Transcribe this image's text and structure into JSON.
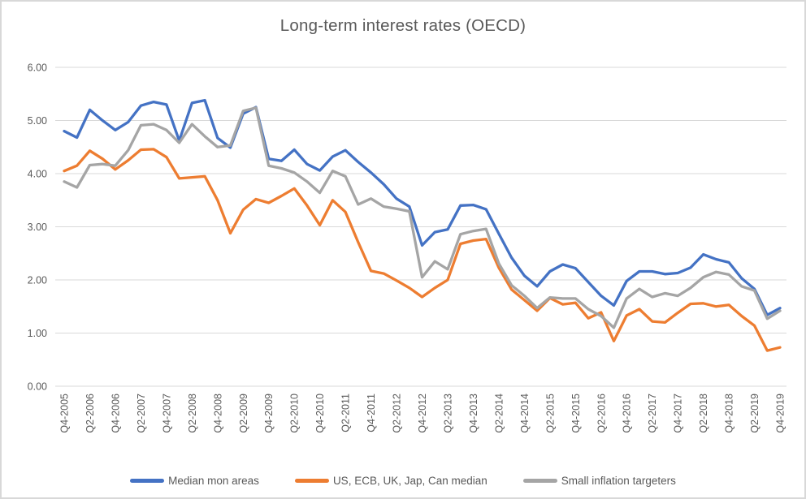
{
  "window": {
    "background": "#FFFFFF",
    "border_color": "#D8D8D8",
    "text_color": "#595959"
  },
  "chart_data": {
    "type": "line",
    "title": "Long-term interest rates (OECD)",
    "grid": true,
    "gridline_color": "#D9D9D9",
    "legend_position": "bottom",
    "ylim": [
      0,
      6
    ],
    "y_ticks": [
      "0.00",
      "1.00",
      "2.00",
      "3.00",
      "4.00",
      "5.00",
      "6.00"
    ],
    "x_label_every": 2,
    "x_label_rotation": -90,
    "categories": [
      "Q4-2005",
      "Q1-2006",
      "Q2-2006",
      "Q3-2006",
      "Q4-2006",
      "Q1-2007",
      "Q2-2007",
      "Q3-2007",
      "Q4-2007",
      "Q1-2008",
      "Q2-2008",
      "Q3-2008",
      "Q4-2008",
      "Q1-2009",
      "Q2-2009",
      "Q3-2009",
      "Q4-2009",
      "Q1-2010",
      "Q2-2010",
      "Q3-2010",
      "Q4-2010",
      "Q1-2011",
      "Q2-2011",
      "Q3-2011",
      "Q4-2011",
      "Q1-2012",
      "Q2-2012",
      "Q3-2012",
      "Q4-2012",
      "Q1-2013",
      "Q2-2013",
      "Q3-2013",
      "Q4-2013",
      "Q1-2014",
      "Q2-2014",
      "Q3-2014",
      "Q4-2014",
      "Q1-2015",
      "Q2-2015",
      "Q3-2015",
      "Q4-2015",
      "Q1-2016",
      "Q2-2016",
      "Q3-2016",
      "Q4-2016",
      "Q1-2017",
      "Q2-2017",
      "Q3-2017",
      "Q4-2017",
      "Q1-2018",
      "Q2-2018",
      "Q3-2018",
      "Q4-2018",
      "Q1-2019",
      "Q2-2019",
      "Q3-2019",
      "Q4-2019"
    ],
    "series": [
      {
        "name": "Median mon areas",
        "color": "#4472C4",
        "values": [
          4.8,
          4.68,
          5.2,
          5.0,
          4.82,
          4.97,
          5.28,
          5.35,
          5.3,
          4.62,
          5.33,
          5.38,
          4.67,
          4.49,
          5.13,
          5.25,
          4.28,
          4.24,
          4.45,
          4.18,
          4.06,
          4.32,
          4.44,
          4.22,
          4.02,
          3.8,
          3.53,
          3.38,
          2.65,
          2.9,
          2.95,
          3.4,
          3.41,
          3.33,
          2.87,
          2.42,
          2.08,
          1.88,
          2.16,
          2.29,
          2.22,
          1.96,
          1.7,
          1.52,
          1.98,
          2.16,
          2.16,
          2.11,
          2.13,
          2.23,
          2.48,
          2.39,
          2.33,
          2.03,
          1.83,
          1.34,
          1.47
        ]
      },
      {
        "name": "US, ECB, UK, Jap, Can median",
        "color": "#ED7D31",
        "values": [
          4.05,
          4.15,
          4.43,
          4.28,
          4.08,
          4.25,
          4.45,
          4.46,
          4.31,
          3.91,
          3.93,
          3.95,
          3.5,
          2.88,
          3.32,
          3.52,
          3.45,
          3.58,
          3.72,
          3.4,
          3.03,
          3.5,
          3.28,
          2.71,
          2.17,
          2.12,
          1.99,
          1.85,
          1.68,
          1.85,
          2.0,
          2.68,
          2.74,
          2.77,
          2.23,
          1.82,
          1.62,
          1.42,
          1.66,
          1.54,
          1.57,
          1.28,
          1.39,
          0.85,
          1.33,
          1.45,
          1.22,
          1.2,
          1.38,
          1.55,
          1.56,
          1.5,
          1.53,
          1.32,
          1.14,
          0.67,
          0.73
        ]
      },
      {
        "name": "Small inflation targeters",
        "color": "#A5A5A5",
        "values": [
          3.85,
          3.74,
          4.16,
          4.18,
          4.15,
          4.44,
          4.91,
          4.93,
          4.82,
          4.58,
          4.93,
          4.7,
          4.5,
          4.53,
          5.18,
          5.24,
          4.15,
          4.1,
          4.02,
          3.85,
          3.64,
          4.05,
          3.95,
          3.42,
          3.53,
          3.38,
          3.34,
          3.29,
          2.05,
          2.35,
          2.2,
          2.86,
          2.92,
          2.96,
          2.31,
          1.9,
          1.7,
          1.47,
          1.67,
          1.65,
          1.65,
          1.45,
          1.32,
          1.1,
          1.65,
          1.83,
          1.68,
          1.75,
          1.7,
          1.85,
          2.05,
          2.15,
          2.1,
          1.88,
          1.8,
          1.27,
          1.42
        ]
      }
    ]
  }
}
